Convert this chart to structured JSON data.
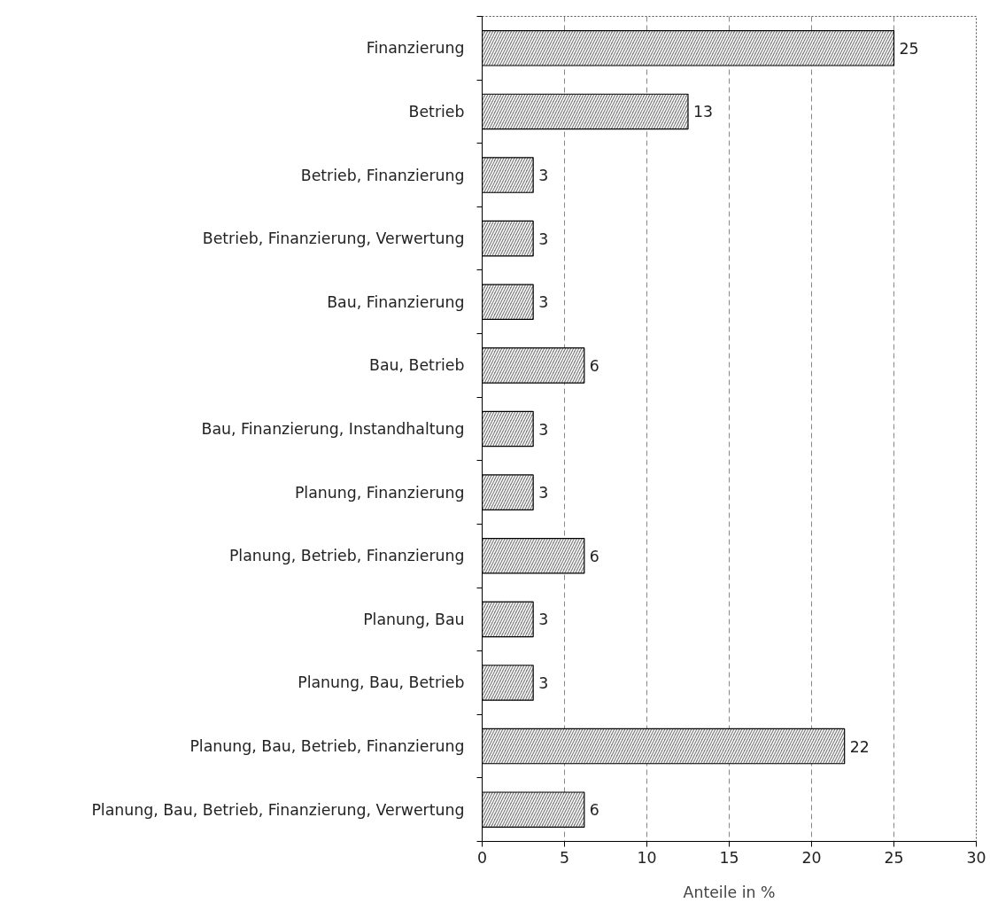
{
  "chart_data": {
    "type": "bar",
    "orientation": "horizontal",
    "xlabel": "Anteile in %",
    "categories": [
      "Finanzierung",
      "Betrieb",
      "Betrieb, Finanzierung",
      "Betrieb, Finanzierung, Verwertung",
      "Bau, Finanzierung",
      "Bau, Betrieb",
      "Bau, Finanzierung, Instandhaltung",
      "Planung, Finanzierung",
      "Planung, Betrieb, Finanzierung",
      "Planung, Bau",
      "Planung, Bau, Betrieb",
      "Planung, Bau, Betrieb, Finanzierung",
      "Planung, Bau, Betrieb, Finanzierung, Verwertung"
    ],
    "values": [
      25,
      12.5,
      3.1,
      3.1,
      3.1,
      6.2,
      3.1,
      3.1,
      6.2,
      3.1,
      3.1,
      22,
      6.2
    ],
    "value_labels": [
      "25",
      "13",
      "3",
      "3",
      "3",
      "6",
      "3",
      "3",
      "6",
      "3",
      "3",
      "22",
      "6"
    ],
    "color": "#808080",
    "xlim": [
      0,
      30
    ],
    "xticks": [
      0,
      5,
      10,
      15,
      20,
      25,
      30
    ],
    "grid": "x"
  }
}
